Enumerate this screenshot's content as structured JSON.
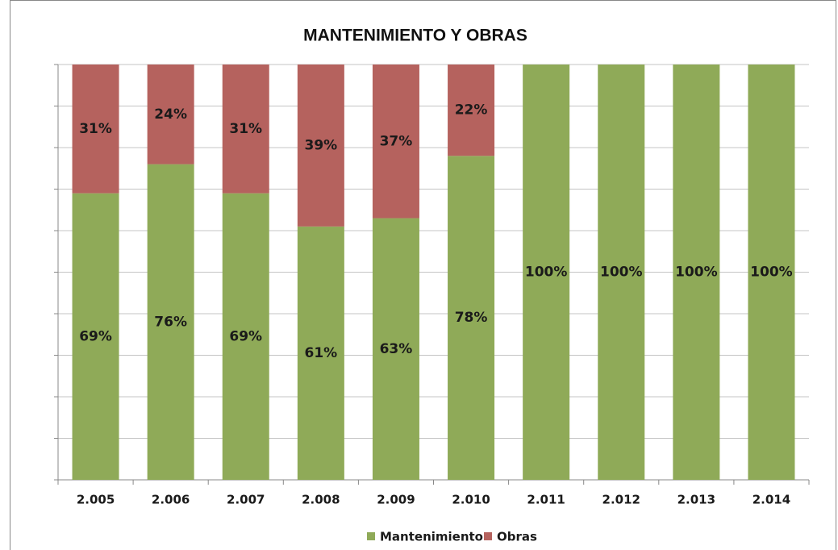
{
  "chart_data": {
    "type": "stacked_bar",
    "title": "MANTENIMIENTO Y OBRAS",
    "categories": [
      "2.005",
      "2.006",
      "2.007",
      "2.008",
      "2.009",
      "2.010",
      "2.011",
      "2.012",
      "2.013",
      "2.014"
    ],
    "series": [
      {
        "name": "Mantenimiento",
        "color": "#8faa58",
        "values": [
          69,
          76,
          69,
          61,
          63,
          78,
          100,
          100,
          100,
          100
        ],
        "value_labels": [
          "69%",
          "76%",
          "69%",
          "61%",
          "63%",
          "78%",
          "100%",
          "100%",
          "100%",
          "100%"
        ]
      },
      {
        "name": "Obras",
        "color": "#b5625e",
        "values": [
          31,
          24,
          31,
          39,
          37,
          22,
          0,
          0,
          0,
          0
        ],
        "value_labels": [
          "31%",
          "24%",
          "31%",
          "39%",
          "37%",
          "22%",
          null,
          null,
          null,
          null
        ]
      }
    ],
    "ylim": [
      0,
      100
    ],
    "ygrid": [
      0,
      10,
      20,
      30,
      40,
      50,
      60,
      70,
      80,
      90,
      100
    ],
    "legend": "bottom"
  }
}
